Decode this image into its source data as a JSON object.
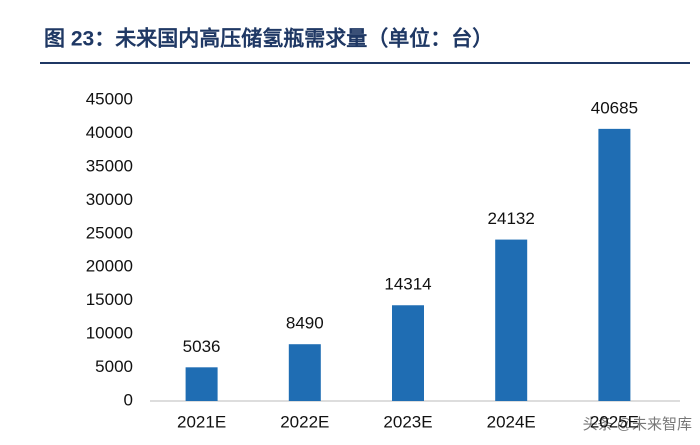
{
  "chart_data": {
    "type": "bar",
    "title": "图 23：未来国内高压储氢瓶需求量（单位：台）",
    "categories": [
      "2021E",
      "2022E",
      "2023E",
      "2024E",
      "2025E"
    ],
    "values": [
      5036,
      8490,
      14314,
      24132,
      40685
    ],
    "color": "#1f6db3",
    "ylim": [
      0,
      45000
    ],
    "yticks": [
      0,
      5000,
      10000,
      15000,
      20000,
      25000,
      30000,
      35000,
      40000,
      45000
    ],
    "grid": false,
    "watermark": "头条 @未来智库"
  }
}
